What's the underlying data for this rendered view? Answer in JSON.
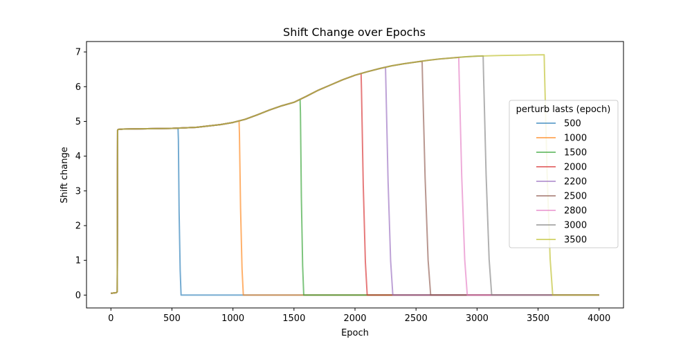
{
  "chart_data": {
    "type": "line",
    "title": "Shift Change over Epochs",
    "xlabel": "Epoch",
    "ylabel": "Shift change",
    "xlim": [
      -200,
      4200
    ],
    "ylim": [
      -0.37,
      7.3
    ],
    "xticks": [
      0,
      500,
      1000,
      1500,
      2000,
      2500,
      3000,
      3500,
      4000
    ],
    "xtick_labels": [
      "0",
      "500",
      "1000",
      "1500",
      "2000",
      "2500",
      "3000",
      "3500",
      "4000"
    ],
    "yticks": [
      0,
      1,
      2,
      3,
      4,
      5,
      6,
      7
    ],
    "ytick_labels": [
      "0",
      "1",
      "2",
      "3",
      "4",
      "5",
      "6",
      "7"
    ],
    "grid": false,
    "legend": {
      "title": "perturb lasts (epoch)",
      "placement": "center-right"
    },
    "shared_curve": {
      "description_free_points": [
        [
          0,
          0.05
        ],
        [
          45,
          0.07
        ],
        [
          52,
          0.1
        ],
        [
          55,
          4.75
        ],
        [
          60,
          4.77
        ],
        [
          100,
          4.78
        ],
        [
          300,
          4.79
        ],
        [
          500,
          4.8
        ],
        [
          700,
          4.83
        ],
        [
          900,
          4.91
        ],
        [
          1000,
          4.97
        ],
        [
          1100,
          5.06
        ],
        [
          1200,
          5.19
        ],
        [
          1300,
          5.33
        ],
        [
          1400,
          5.45
        ],
        [
          1500,
          5.55
        ],
        [
          1600,
          5.72
        ],
        [
          1700,
          5.9
        ],
        [
          1800,
          6.05
        ],
        [
          1900,
          6.2
        ],
        [
          2000,
          6.33
        ],
        [
          2100,
          6.43
        ],
        [
          2200,
          6.52
        ],
        [
          2300,
          6.6
        ],
        [
          2400,
          6.66
        ],
        [
          2500,
          6.71
        ],
        [
          2600,
          6.76
        ],
        [
          2700,
          6.8
        ],
        [
          2800,
          6.83
        ],
        [
          2900,
          6.86
        ],
        [
          3000,
          6.88
        ],
        [
          3100,
          6.89
        ],
        [
          3200,
          6.9
        ],
        [
          3300,
          6.905
        ],
        [
          3400,
          6.91
        ],
        [
          3550,
          6.92
        ]
      ]
    },
    "series": [
      {
        "name": "500",
        "color": "#1f77b4",
        "stop": 550,
        "drop_end": 575
      },
      {
        "name": "1000",
        "color": "#ff7f0e",
        "stop": 1050,
        "drop_end": 1085
      },
      {
        "name": "1500",
        "color": "#2ca02c",
        "stop": 1550,
        "drop_end": 1580
      },
      {
        "name": "2000",
        "color": "#d62728",
        "stop": 2050,
        "drop_end": 2100
      },
      {
        "name": "2200",
        "color": "#9467bd",
        "stop": 2250,
        "drop_end": 2310
      },
      {
        "name": "2500",
        "color": "#8c564b",
        "stop": 2550,
        "drop_end": 2620
      },
      {
        "name": "2800",
        "color": "#e377c2",
        "stop": 2850,
        "drop_end": 2920
      },
      {
        "name": "3000",
        "color": "#7f7f7f",
        "stop": 3050,
        "drop_end": 3120
      },
      {
        "name": "3500",
        "color": "#bcbd22",
        "stop": 3550,
        "drop_end": 3620
      }
    ],
    "x_end": 4000,
    "y_after_drop": 0
  }
}
